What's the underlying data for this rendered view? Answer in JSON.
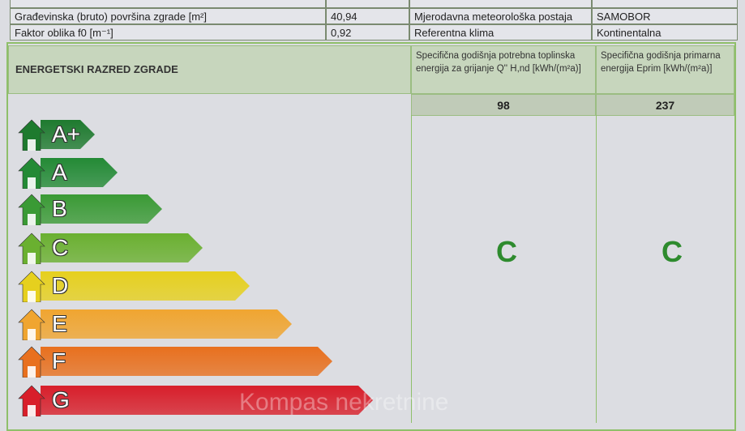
{
  "info_table": [
    {
      "label": "Građevinska (bruto) površina zgrade [m²]",
      "value": "40,94",
      "label2": "Mjerodavna meteorološka postaja",
      "value2": "SAMOBOR"
    },
    {
      "label": "Faktor oblika f0 [m⁻¹]",
      "value": "0,92",
      "label2": "Referentna klima",
      "value2": "Kontinentalna"
    }
  ],
  "energy": {
    "title": "ENERGETSKI RAZRED ZGRADE",
    "col1_header": "Specifična godišnja potrebna toplinska energija za grijanje Q'' H,nd [kWh/(m²a)]",
    "col2_header": "Specifična godišnja primarna energija Eprim [kWh/(m²a)]",
    "col1_value": "98",
    "col2_value": "237",
    "col1_class": "C",
    "col2_class": "C",
    "classes": [
      {
        "label": "A+",
        "color": "#1e7a2e"
      },
      {
        "label": "A",
        "color": "#238a35"
      },
      {
        "label": "B",
        "color": "#3a9a35"
      },
      {
        "label": "C",
        "color": "#6ab030"
      },
      {
        "label": "D",
        "color": "#e6d01e"
      },
      {
        "label": "E",
        "color": "#f0a530"
      },
      {
        "label": "F",
        "color": "#e8701e"
      },
      {
        "label": "G",
        "color": "#d81e2a"
      }
    ]
  },
  "watermark": "Kompas nekretnine"
}
